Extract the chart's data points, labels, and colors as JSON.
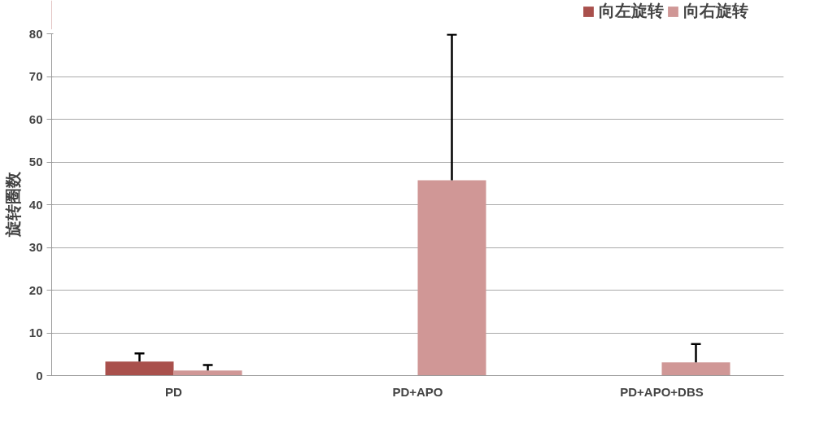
{
  "chart_data": {
    "type": "bar",
    "ylabel": "旋转圈数",
    "categories": [
      "PD",
      "PD+APO",
      "PD+APO+DBS"
    ],
    "series": [
      {
        "name": "向左旋转",
        "color": "#a9504c",
        "values": [
          3.3,
          0,
          0
        ],
        "errors": [
          [
            3.3,
            5.2
          ],
          null,
          null
        ]
      },
      {
        "name": "向右旋转",
        "color": "#d09796",
        "values": [
          1.2,
          45.7,
          3.1
        ],
        "errors": [
          [
            1.2,
            2.5
          ],
          [
            45.7,
            79.8
          ],
          [
            3.1,
            7.4
          ]
        ]
      }
    ],
    "ylim": [
      0,
      80
    ],
    "yticks": [
      0,
      10,
      20,
      30,
      40,
      50,
      60,
      70,
      80
    ],
    "grid": "y",
    "legend": "top right"
  }
}
